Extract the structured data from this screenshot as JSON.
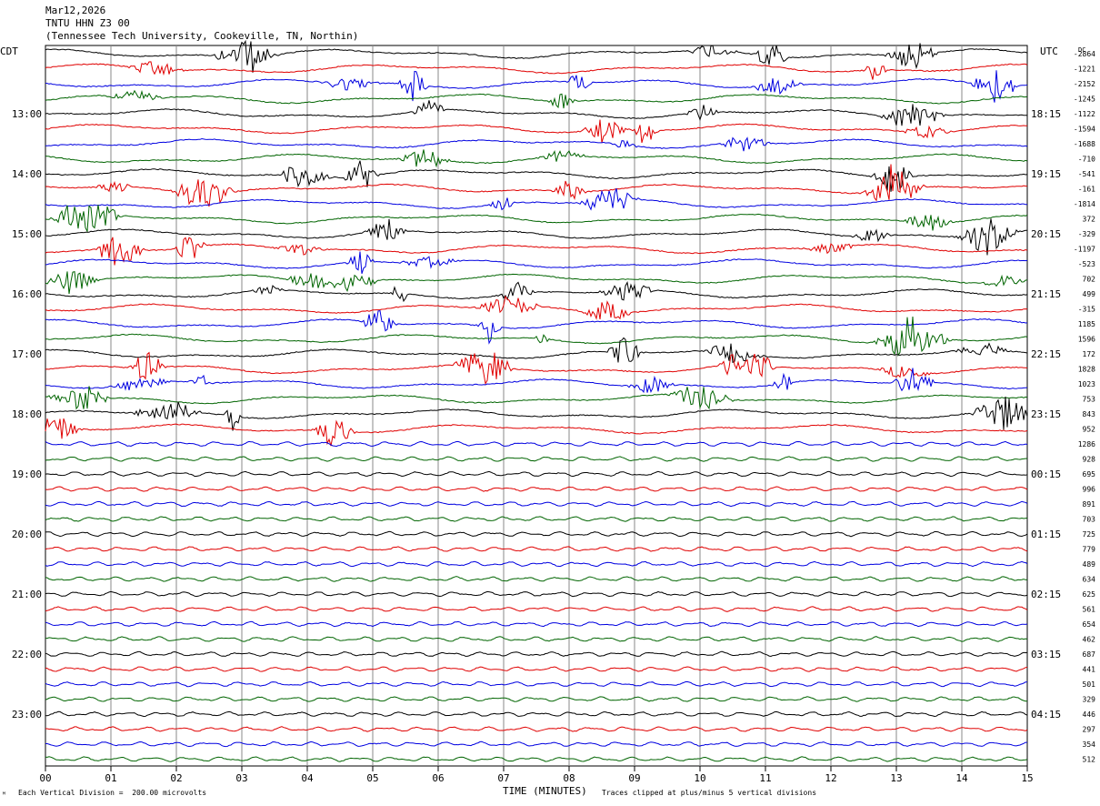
{
  "header": {
    "date": "Mar12,2026",
    "station": "TNTU HHN Z3 00",
    "location": "(Tennessee Tech University, Cookeville, TN, Northin)"
  },
  "left_tz": "CDT",
  "right_tz": "UTC",
  "dc_label": "DC",
  "footer": {
    "scale": "Each Vertical Division =  200.00 microvolts",
    "xlabel": "TIME (MINUTES)",
    "clip": "Traces clipped at plus/minus 5 vertical divisions",
    "corner": "ᴹ"
  },
  "chart_data": {
    "type": "line",
    "xlabel": "TIME (MINUTES)",
    "xlim": [
      0,
      15
    ],
    "x_ticks": [
      "00",
      "01",
      "02",
      "03",
      "04",
      "05",
      "06",
      "07",
      "08",
      "09",
      "10",
      "11",
      "12",
      "13",
      "14",
      "15"
    ],
    "rows_per_hour": 4,
    "trace_colors": [
      "#000000",
      "#e00000",
      "#0000e0",
      "#006400"
    ],
    "left_hour_labels": [
      "13:00",
      "14:00",
      "15:00",
      "16:00",
      "17:00",
      "18:00",
      "19:00",
      "20:00",
      "21:00",
      "22:00",
      "23:00"
    ],
    "right_hour_labels": [
      "18:15",
      "19:15",
      "20:15",
      "21:15",
      "22:15",
      "23:15",
      "00:15",
      "01:15",
      "02:15",
      "03:15",
      "04:15"
    ],
    "dc_offsets": [
      "-2864",
      "-1221",
      "-2152",
      "-1245",
      "-1122",
      "-1594",
      "-1688",
      "-710",
      "-541",
      "-161",
      "-1814",
      "372",
      "-329",
      "-1197",
      "-523",
      "702",
      "499",
      "-315",
      "1185",
      "1596",
      "172",
      "1828",
      "1023",
      "753",
      "843",
      "952",
      "1286",
      "928",
      "695",
      "996",
      "891",
      "703",
      "725",
      "779",
      "489",
      "634",
      "625",
      "561",
      "654",
      "462",
      "687",
      "441",
      "501",
      "329",
      "446",
      "297",
      "354",
      "512"
    ]
  }
}
